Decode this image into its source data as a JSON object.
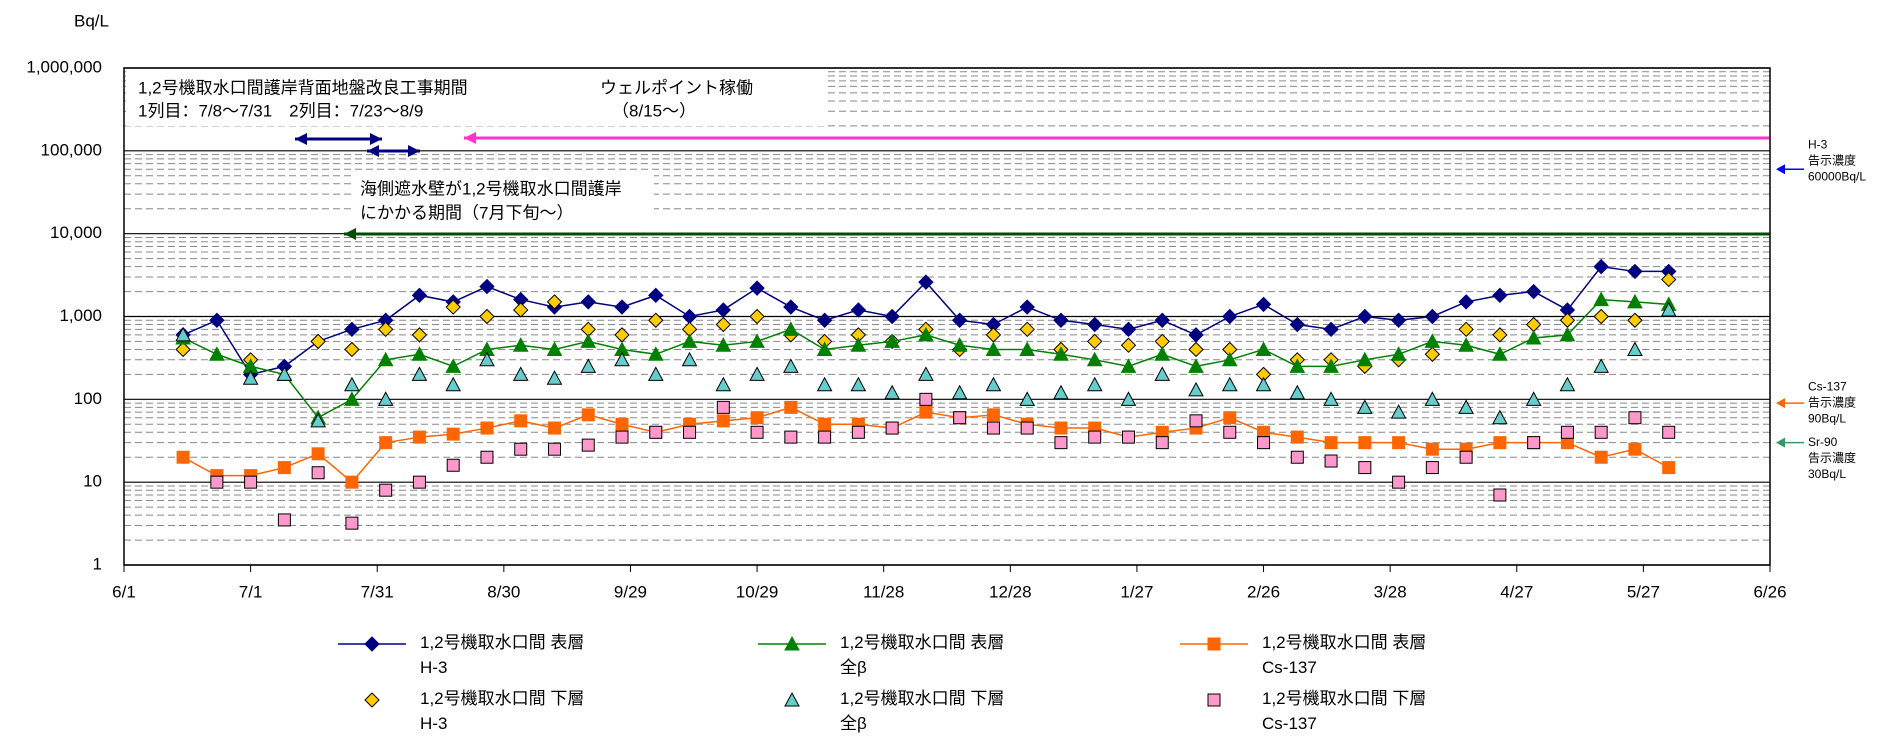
{
  "chart_data": {
    "type": "line",
    "y_label": "Bq/L",
    "log_scale": true,
    "grid": true,
    "minor_grid": true,
    "xlim": [
      0,
      390
    ],
    "xticks": [
      {
        "value": 0,
        "label": "6/1"
      },
      {
        "value": 30,
        "label": "7/1"
      },
      {
        "value": 60,
        "label": "7/31"
      },
      {
        "value": 90,
        "label": "8/30"
      },
      {
        "value": 120,
        "label": "9/29"
      },
      {
        "value": 150,
        "label": "10/29"
      },
      {
        "value": 180,
        "label": "11/28"
      },
      {
        "value": 210,
        "label": "12/28"
      },
      {
        "value": 240,
        "label": "1/27"
      },
      {
        "value": 270,
        "label": "2/26"
      },
      {
        "value": 300,
        "label": "3/28"
      },
      {
        "value": 330,
        "label": "4/27"
      },
      {
        "value": 360,
        "label": "5/27"
      },
      {
        "value": 390,
        "label": "6/26"
      }
    ],
    "ylim": [
      1,
      1000000
    ],
    "yticks": [
      1,
      10,
      100,
      {
        "value": 1000,
        "label": "1,000"
      },
      {
        "value": 10000,
        "label": "10,000"
      },
      {
        "value": 100000,
        "label": "100,000"
      },
      {
        "value": 1000000,
        "label": "1,000,000"
      }
    ],
    "x": [
      14,
      22,
      30,
      38,
      46,
      54,
      62,
      70,
      78,
      86,
      94,
      102,
      110,
      118,
      126,
      134,
      142,
      150,
      158,
      166,
      174,
      182,
      190,
      198,
      206,
      214,
      222,
      230,
      238,
      246,
      254,
      262,
      270,
      278,
      286,
      294,
      302,
      310,
      318,
      326,
      334,
      342,
      350,
      358,
      366
    ],
    "series": [
      {
        "name": "1,2号機取水口間 表層\nH-3",
        "color": "#000080",
        "marker": "diamond",
        "line": true,
        "values": [
          600,
          900,
          200,
          250,
          500,
          700,
          900,
          1800,
          1500,
          2300,
          1600,
          1300,
          1500,
          1300,
          1800,
          1000,
          1200,
          2200,
          1300,
          900,
          1200,
          1000,
          2600,
          900,
          800,
          1300,
          900,
          800,
          700,
          900,
          600,
          1000,
          1400,
          800,
          700,
          1000,
          900,
          1000,
          1500,
          1800,
          2000,
          1200,
          4000,
          3500,
          3500
        ]
      },
      {
        "name": "1,2号機取水口間 下層\nH-3",
        "color": "#ffcc00",
        "marker": "diamond",
        "line": false,
        "values": [
          400,
          null,
          300,
          null,
          500,
          400,
          700,
          600,
          1300,
          1000,
          1200,
          1500,
          700,
          600,
          900,
          700,
          800,
          1000,
          600,
          500,
          600,
          500,
          700,
          400,
          600,
          700,
          400,
          500,
          450,
          500,
          400,
          400,
          200,
          300,
          300,
          250,
          300,
          350,
          700,
          600,
          800,
          900,
          1000,
          900,
          2800
        ]
      },
      {
        "name": "1,2号機取水口間 表層\n全β",
        "color": "#008000",
        "marker": "triangle",
        "line": true,
        "values": [
          550,
          350,
          250,
          200,
          60,
          100,
          300,
          350,
          250,
          400,
          450,
          400,
          500,
          400,
          350,
          500,
          450,
          500,
          700,
          400,
          450,
          500,
          600,
          450,
          400,
          400,
          350,
          300,
          250,
          350,
          250,
          300,
          400,
          250,
          250,
          300,
          350,
          500,
          450,
          350,
          550,
          600,
          1600,
          1500,
          1400
        ]
      },
      {
        "name": "1,2号機取水口間 下層\n全β",
        "color": "#66cccc",
        "marker": "triangle",
        "line": false,
        "values": [
          600,
          null,
          180,
          200,
          55,
          150,
          100,
          200,
          150,
          300,
          200,
          180,
          250,
          300,
          200,
          300,
          150,
          200,
          250,
          150,
          150,
          120,
          200,
          120,
          150,
          100,
          120,
          150,
          100,
          200,
          130,
          150,
          150,
          120,
          100,
          80,
          70,
          100,
          80,
          60,
          100,
          150,
          250,
          400,
          1200
        ]
      },
      {
        "name": "1,2号機取水口間 表層\nCs-137",
        "color": "#ff6600",
        "marker": "square",
        "line": true,
        "values": [
          20,
          12,
          12,
          15,
          22,
          10,
          30,
          35,
          38,
          45,
          55,
          45,
          65,
          50,
          40,
          50,
          55,
          60,
          80,
          50,
          50,
          45,
          70,
          60,
          65,
          50,
          45,
          45,
          35,
          40,
          45,
          60,
          40,
          35,
          30,
          30,
          30,
          25,
          25,
          30,
          30,
          30,
          20,
          25,
          15
        ]
      },
      {
        "name": "1,2号機取水口間 下層\nCs-137",
        "color": "#ff99cc",
        "marker": "square",
        "line": false,
        "values": [
          null,
          10,
          10,
          3.5,
          13,
          3.2,
          8,
          10,
          16,
          20,
          25,
          25,
          28,
          35,
          40,
          40,
          80,
          40,
          35,
          35,
          40,
          45,
          100,
          60,
          45,
          45,
          30,
          35,
          35,
          30,
          55,
          40,
          30,
          20,
          18,
          15,
          10,
          15,
          20,
          7,
          30,
          40,
          40,
          60,
          40
        ]
      }
    ],
    "annotations": [
      "1,2号機取水口間護岸背面地盤改良工事期間",
      "1列目：7/8～7/31　2列目：7/23～8/9",
      "ウェルポイント稼働",
      "（8/15～）",
      "海側遮水壁が1,2号機取水口間護岸",
      "にかかる期間（7月下旬～）"
    ],
    "reference_lines": [
      {
        "value": 60000,
        "color": "#0000ff",
        "label": [
          "H-3",
          "告示濃度",
          "60000Bq/L"
        ]
      },
      {
        "value": 90,
        "color": "#ff6600",
        "label": [
          "Cs-137",
          "告示濃度",
          "90Bq/L"
        ]
      },
      {
        "value": 30,
        "color": "#339966",
        "label": [
          "Sr-90",
          "告示濃度",
          "30Bq/L"
        ]
      }
    ]
  }
}
